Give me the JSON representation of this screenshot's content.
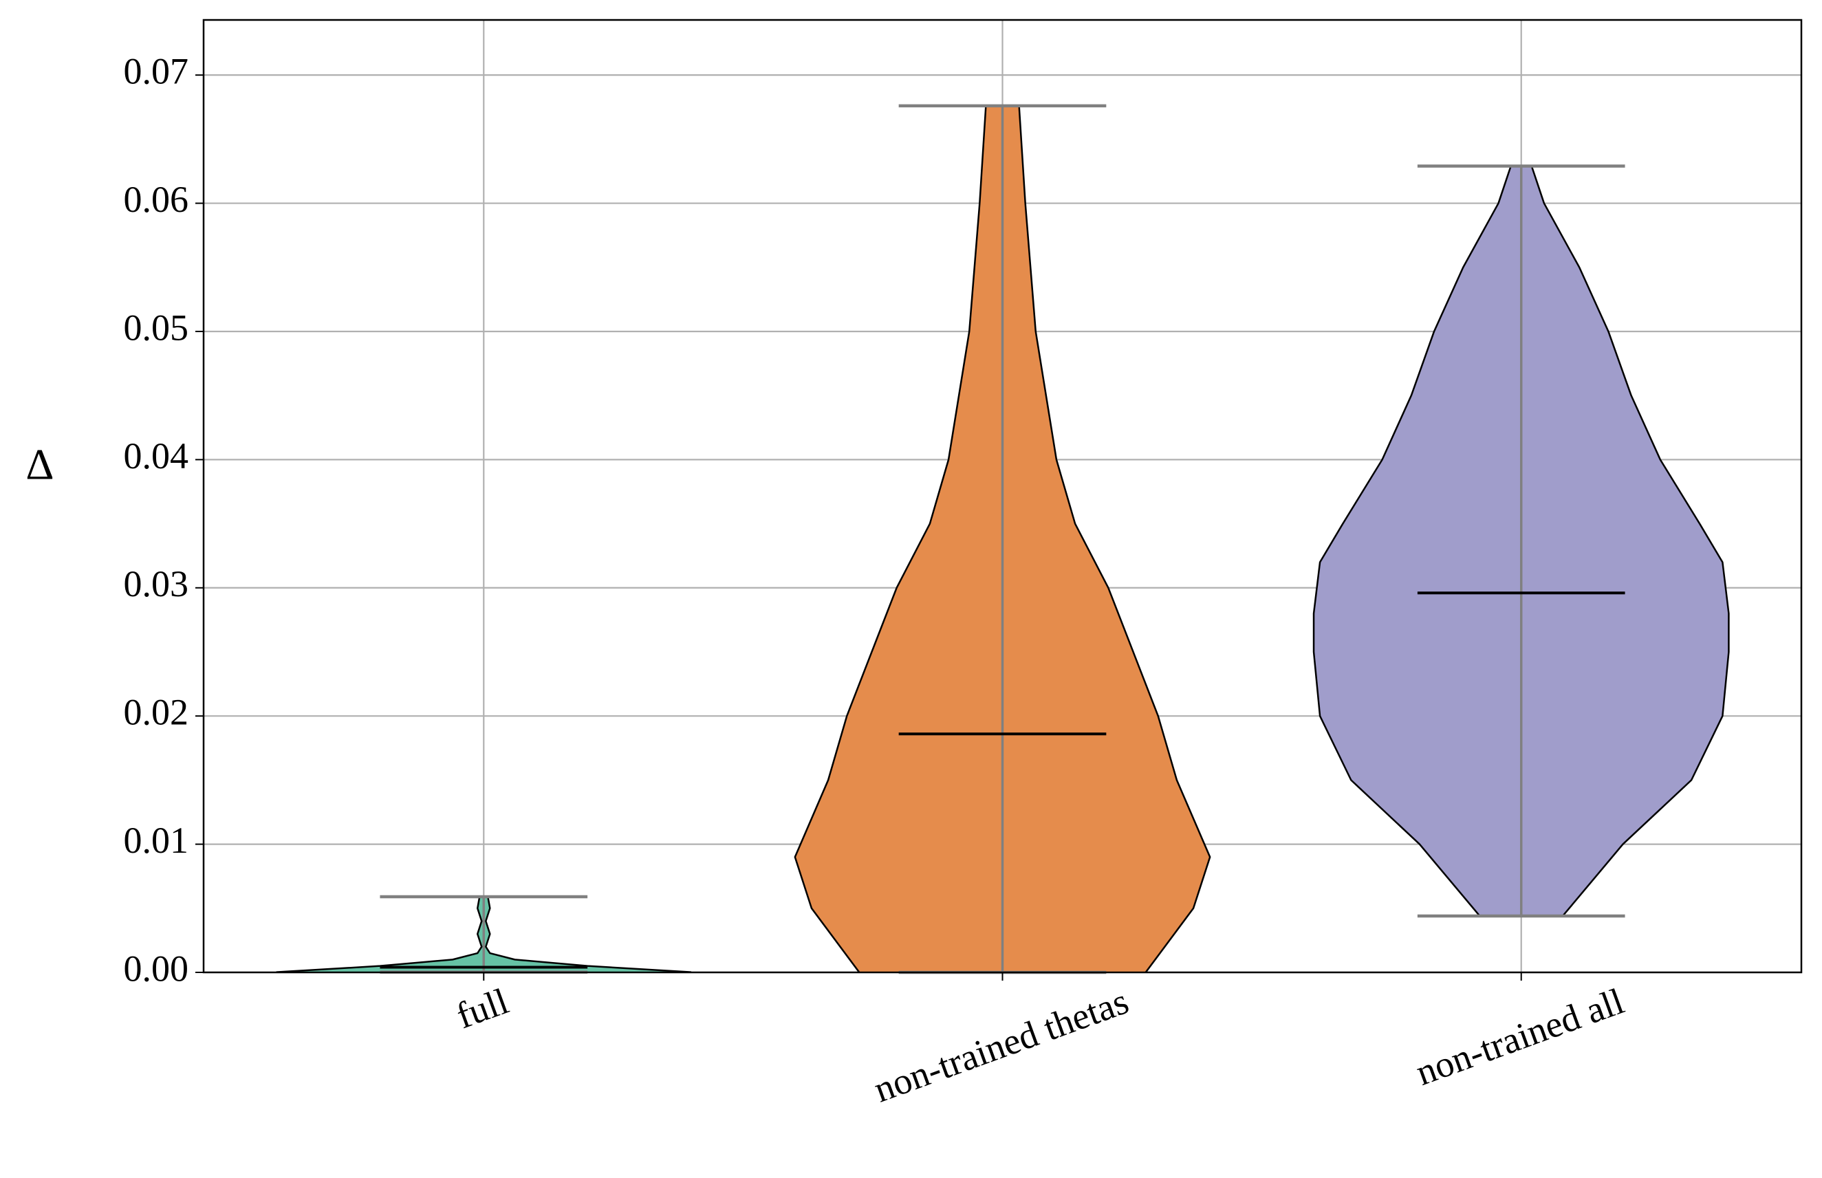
{
  "chart_data": {
    "type": "violin",
    "ylabel": "Δ",
    "categories": [
      "full",
      "non-trained thetas",
      "non-trained all"
    ],
    "violins": [
      {
        "color": "#66c2a5",
        "min": 2e-05,
        "median": 0.0004,
        "max": 0.0059,
        "density_y": [
          2e-05,
          0.0005,
          0.001,
          0.0015,
          0.002,
          0.003,
          0.004,
          0.005,
          0.0059
        ],
        "density_width": [
          1.0,
          0.5,
          0.15,
          0.03,
          0.01,
          0.03,
          0.01,
          0.03,
          0.02
        ]
      },
      {
        "color": "#e58c4c",
        "min": 0.0,
        "median": 0.0186,
        "max": 0.0676,
        "density_y": [
          0.0,
          0.005,
          0.009,
          0.015,
          0.02,
          0.025,
          0.03,
          0.035,
          0.04,
          0.05,
          0.06,
          0.0676
        ],
        "density_width": [
          0.69,
          0.92,
          1.0,
          0.84,
          0.75,
          0.63,
          0.51,
          0.35,
          0.26,
          0.16,
          0.11,
          0.08
        ]
      },
      {
        "color": "#a09dcb",
        "min": 0.0044,
        "median": 0.0296,
        "max": 0.0629,
        "density_y": [
          0.0044,
          0.01,
          0.015,
          0.02,
          0.025,
          0.028,
          0.032,
          0.035,
          0.04,
          0.045,
          0.05,
          0.055,
          0.06,
          0.0629
        ],
        "density_width": [
          0.2,
          0.49,
          0.82,
          0.97,
          1.0,
          1.0,
          0.97,
          0.86,
          0.67,
          0.53,
          0.42,
          0.28,
          0.11,
          0.05
        ]
      }
    ],
    "ylim": [
      0,
      0.0743
    ],
    "yticks": [
      {
        "value": 0,
        "label": "0.00"
      },
      {
        "value": 0.01,
        "label": "0.01"
      },
      {
        "value": 0.02,
        "label": "0.02"
      },
      {
        "value": 0.03,
        "label": "0.03"
      },
      {
        "value": 0.04,
        "label": "0.04"
      },
      {
        "value": 0.05,
        "label": "0.05"
      },
      {
        "value": 0.06,
        "label": "0.06"
      },
      {
        "value": 0.07,
        "label": "0.07"
      }
    ],
    "grid": true
  }
}
